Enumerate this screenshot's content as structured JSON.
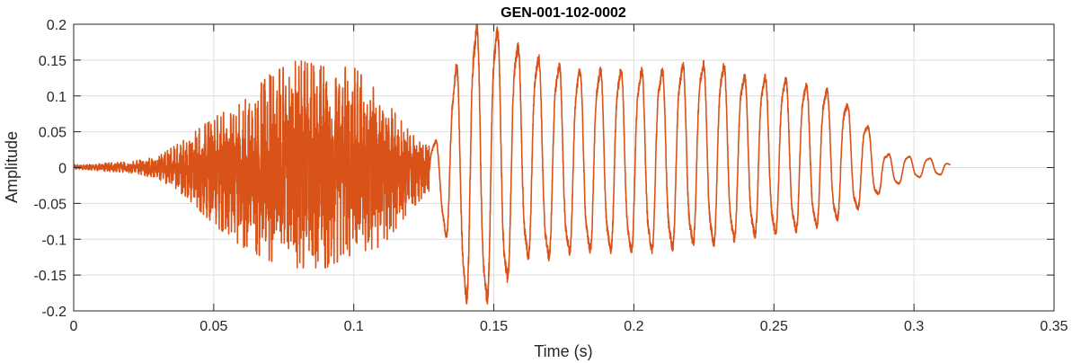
{
  "chart_data": {
    "type": "line",
    "title": "GEN-001-102-0002",
    "xlabel": "Time (s)",
    "ylabel": "Amplitude",
    "xlim": [
      0,
      0.35
    ],
    "ylim": [
      -0.2,
      0.2
    ],
    "x_ticks": [
      0,
      0.05,
      0.1,
      0.15,
      0.2,
      0.25,
      0.3,
      0.35
    ],
    "x_tick_labels": [
      "0",
      "0.05",
      "0.1",
      "0.15",
      "0.2",
      "0.25",
      "0.3",
      "0.35"
    ],
    "y_ticks": [
      -0.2,
      -0.15,
      -0.1,
      -0.05,
      0,
      0.05,
      0.1,
      0.15,
      0.2
    ],
    "y_tick_labels": [
      "-0.2",
      "-0.15",
      "-0.1",
      "-0.05",
      "0",
      "0.05",
      "0.1",
      "0.15",
      "0.2"
    ],
    "grid": true,
    "series": [
      {
        "color": "#d95319",
        "duration": 0.313,
        "envelope": {
          "x": [
            0,
            0.005,
            0.01,
            0.02,
            0.03,
            0.04,
            0.05,
            0.06,
            0.07,
            0.08,
            0.09,
            0.1,
            0.11,
            0.12,
            0.125,
            0.13,
            0.14,
            0.15,
            0.16,
            0.17,
            0.18,
            0.19,
            0.2,
            0.21,
            0.22,
            0.23,
            0.24,
            0.25,
            0.26,
            0.27,
            0.28,
            0.29,
            0.3,
            0.31,
            0.313
          ],
          "max": [
            0.004,
            0.004,
            0.006,
            0.008,
            0.015,
            0.04,
            0.07,
            0.09,
            0.13,
            0.15,
            0.14,
            0.14,
            0.1,
            0.05,
            0.03,
            0.04,
            0.2,
            0.2,
            0.17,
            0.15,
            0.14,
            0.14,
            0.14,
            0.14,
            0.15,
            0.15,
            0.13,
            0.13,
            0.12,
            0.11,
            0.08,
            0.02,
            0.015,
            0.012,
            0.004
          ],
          "min": [
            -0.002,
            -0.003,
            -0.005,
            -0.007,
            -0.015,
            -0.04,
            -0.08,
            -0.11,
            -0.13,
            -0.14,
            -0.14,
            -0.12,
            -0.11,
            -0.06,
            -0.04,
            -0.06,
            -0.19,
            -0.19,
            -0.13,
            -0.13,
            -0.12,
            -0.12,
            -0.12,
            -0.12,
            -0.11,
            -0.11,
            -0.1,
            -0.095,
            -0.09,
            -0.08,
            -0.06,
            -0.03,
            -0.015,
            -0.01,
            -0.002
          ]
        }
      }
    ]
  }
}
